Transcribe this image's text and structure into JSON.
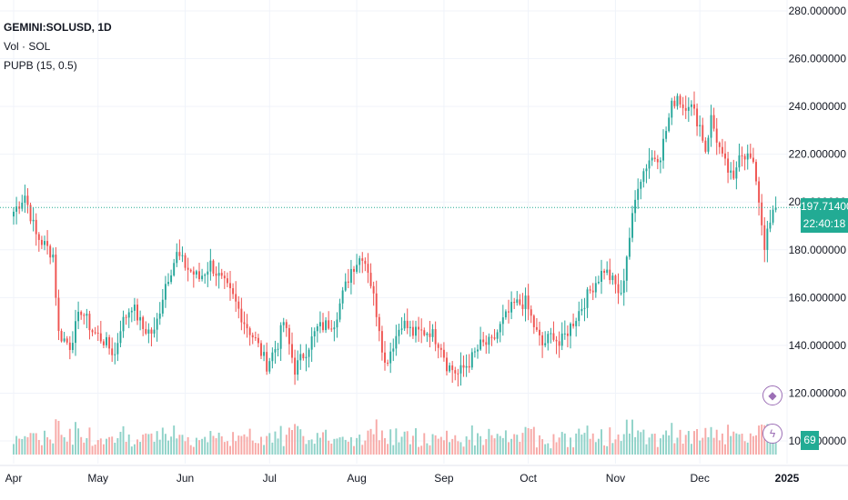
{
  "legend": {
    "symbol": "GEMINI:SOLUSD, 1D",
    "vol": "Vol · SOL",
    "indicator": "PUPB (15, 0.5)"
  },
  "price_tag": {
    "price": "197.714000",
    "countdown": "22:40:18"
  },
  "volume_tag": {
    "label": "69"
  },
  "icons": {
    "diamond": "diamond-icon",
    "bolt": "lightning-icon"
  },
  "colors": {
    "up": "#26a69a",
    "down": "#ef5350",
    "up_vol": "#8fd2c8",
    "down_vol": "#f7a9a7",
    "grid": "#f0f3fa",
    "last_line": "#22ab94"
  },
  "chart_data": {
    "type": "candlestick",
    "title": "",
    "y_axis": {
      "min": 100,
      "max": 280,
      "ticks": [
        "280.000000",
        "260.000000",
        "240.000000",
        "220.000000",
        "200.000000",
        "180.000000",
        "160.000000",
        "140.000000",
        "120.000000",
        "100.000000"
      ],
      "tick_values": [
        280,
        260,
        240,
        220,
        200,
        180,
        160,
        140,
        120,
        100
      ]
    },
    "x_axis": {
      "labels": [
        "Apr",
        "May",
        "Jun",
        "Jul",
        "Aug",
        "Sep",
        "Oct",
        "Nov",
        "Dec",
        "2025"
      ],
      "label_days": [
        1,
        31,
        62,
        92,
        123,
        154,
        184,
        215,
        245,
        276
      ]
    },
    "last_price": 197.714,
    "days": 272,
    "anchors": [
      [
        0,
        196
      ],
      [
        4,
        203
      ],
      [
        8,
        186
      ],
      [
        14,
        178
      ],
      [
        16,
        145
      ],
      [
        20,
        140
      ],
      [
        24,
        155
      ],
      [
        28,
        146
      ],
      [
        32,
        142
      ],
      [
        36,
        136
      ],
      [
        38,
        148
      ],
      [
        42,
        157
      ],
      [
        46,
        147
      ],
      [
        50,
        145
      ],
      [
        54,
        166
      ],
      [
        58,
        178
      ],
      [
        62,
        172
      ],
      [
        66,
        168
      ],
      [
        70,
        174
      ],
      [
        74,
        167
      ],
      [
        78,
        160
      ],
      [
        82,
        150
      ],
      [
        86,
        142
      ],
      [
        90,
        132
      ],
      [
        94,
        141
      ],
      [
        96,
        150
      ],
      [
        100,
        130
      ],
      [
        104,
        138
      ],
      [
        108,
        147
      ],
      [
        114,
        150
      ],
      [
        120,
        172
      ],
      [
        124,
        178
      ],
      [
        126,
        172
      ],
      [
        130,
        148
      ],
      [
        132,
        132
      ],
      [
        134,
        138
      ],
      [
        138,
        150
      ],
      [
        142,
        145
      ],
      [
        148,
        146
      ],
      [
        152,
        140
      ],
      [
        154,
        132
      ],
      [
        158,
        128
      ],
      [
        162,
        133
      ],
      [
        166,
        140
      ],
      [
        170,
        141
      ],
      [
        174,
        150
      ],
      [
        178,
        157
      ],
      [
        182,
        158
      ],
      [
        186,
        145
      ],
      [
        188,
        140
      ],
      [
        192,
        145
      ],
      [
        194,
        140
      ],
      [
        200,
        152
      ],
      [
        206,
        165
      ],
      [
        210,
        172
      ],
      [
        214,
        165
      ],
      [
        216,
        160
      ],
      [
        218,
        178
      ],
      [
        222,
        208
      ],
      [
        226,
        218
      ],
      [
        230,
        220
      ],
      [
        234,
        240
      ],
      [
        236,
        245
      ],
      [
        238,
        240
      ],
      [
        240,
        242
      ],
      [
        244,
        232
      ],
      [
        246,
        222
      ],
      [
        248,
        235
      ],
      [
        252,
        218
      ],
      [
        256,
        208
      ],
      [
        258,
        222
      ],
      [
        262,
        218
      ],
      [
        264,
        210
      ],
      [
        267,
        182
      ],
      [
        270,
        195
      ],
      [
        271,
        197.7
      ]
    ],
    "volume": {
      "note": "daily volume bars, colored by candle direction"
    }
  }
}
